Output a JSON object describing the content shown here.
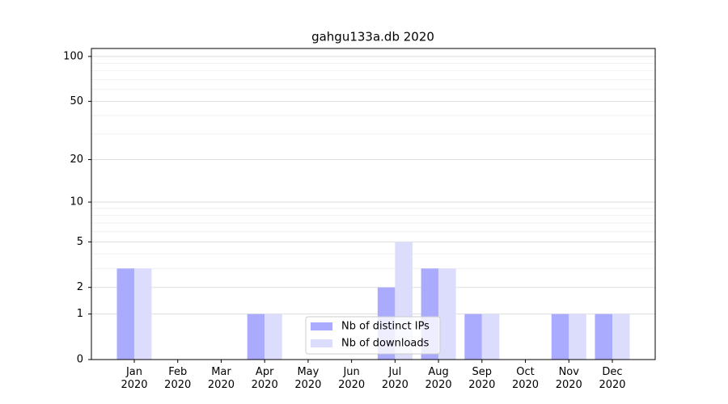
{
  "chart_data": {
    "type": "bar",
    "title": "gahgu133a.db 2020",
    "categories": [
      "Jan 2020",
      "Feb 2020",
      "Mar 2020",
      "Apr 2020",
      "May 2020",
      "Jun 2020",
      "Jul 2020",
      "Aug 2020",
      "Sep 2020",
      "Oct 2020",
      "Nov 2020",
      "Dec 2020"
    ],
    "series": [
      {
        "name": "Nb of distinct IPs",
        "color": "#aaaaff",
        "values": [
          3,
          0,
          0,
          1,
          0,
          0,
          2,
          3,
          1,
          0,
          1,
          1
        ]
      },
      {
        "name": "Nb of downloads",
        "color": "#dcdcfc",
        "values": [
          3,
          0,
          0,
          1,
          0,
          0,
          5,
          3,
          1,
          0,
          1,
          1
        ]
      }
    ],
    "yscale": "log1p",
    "ylim": [
      0,
      113
    ],
    "yticks": [
      0,
      1,
      2,
      5,
      10,
      20,
      50,
      100
    ],
    "yminorticks": [
      3,
      4,
      6,
      7,
      8,
      9,
      30,
      40,
      60,
      70,
      80,
      90
    ],
    "grid": true,
    "legend": "lower center"
  }
}
